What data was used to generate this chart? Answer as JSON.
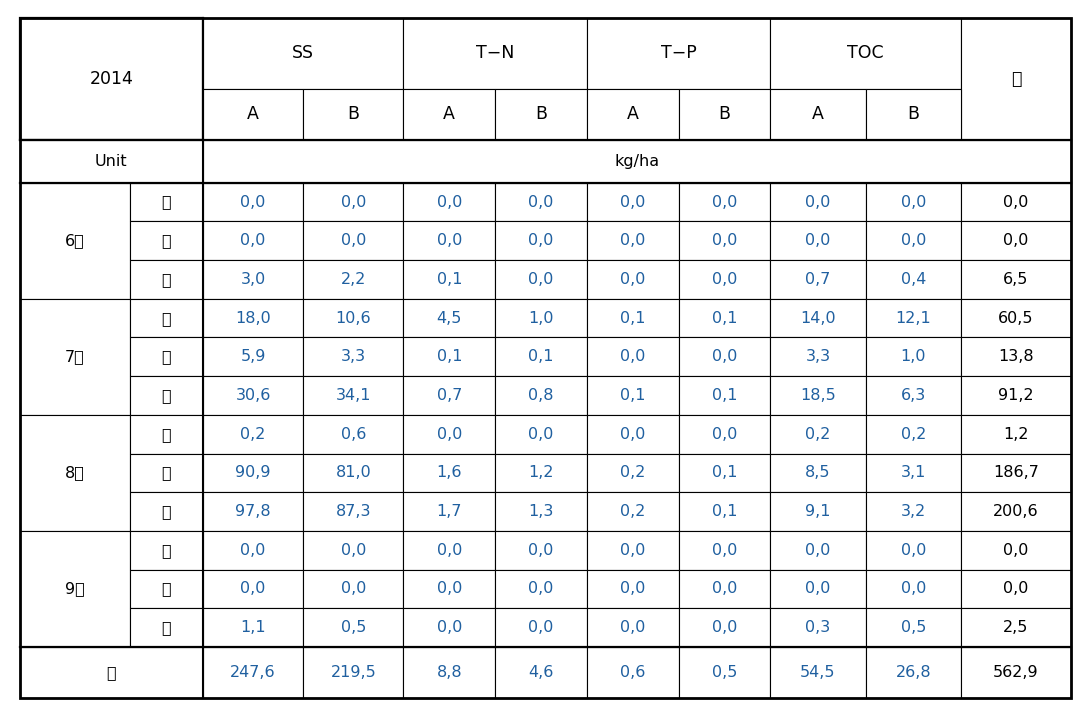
{
  "title_year": "2014",
  "unit_label": "Unit",
  "unit_value": "kg/ha",
  "last_col": "계",
  "months": [
    "6월",
    "7월",
    "8월",
    "9월"
  ],
  "sub_rows": [
    "초",
    "중",
    "말"
  ],
  "total_row_label": "계",
  "data": [
    [
      "0,0",
      "0,0",
      "0,0",
      "0,0",
      "0,0",
      "0,0",
      "0,0",
      "0,0",
      "0,0"
    ],
    [
      "0,0",
      "0,0",
      "0,0",
      "0,0",
      "0,0",
      "0,0",
      "0,0",
      "0,0",
      "0,0"
    ],
    [
      "3,0",
      "2,2",
      "0,1",
      "0,0",
      "0,0",
      "0,0",
      "0,7",
      "0,4",
      "6,5"
    ],
    [
      "18,0",
      "10,6",
      "4,5",
      "1,0",
      "0,1",
      "0,1",
      "14,0",
      "12,1",
      "60,5"
    ],
    [
      "5,9",
      "3,3",
      "0,1",
      "0,1",
      "0,0",
      "0,0",
      "3,3",
      "1,0",
      "13,8"
    ],
    [
      "30,6",
      "34,1",
      "0,7",
      "0,8",
      "0,1",
      "0,1",
      "18,5",
      "6,3",
      "91,2"
    ],
    [
      "0,2",
      "0,6",
      "0,0",
      "0,0",
      "0,0",
      "0,0",
      "0,2",
      "0,2",
      "1,2"
    ],
    [
      "90,9",
      "81,0",
      "1,6",
      "1,2",
      "0,2",
      "0,1",
      "8,5",
      "3,1",
      "186,7"
    ],
    [
      "97,8",
      "87,3",
      "1,7",
      "1,3",
      "0,2",
      "0,1",
      "9,1",
      "3,2",
      "200,6"
    ],
    [
      "0,0",
      "0,0",
      "0,0",
      "0,0",
      "0,0",
      "0,0",
      "0,0",
      "0,0",
      "0,0"
    ],
    [
      "0,0",
      "0,0",
      "0,0",
      "0,0",
      "0,0",
      "0,0",
      "0,0",
      "0,0",
      "0,0"
    ],
    [
      "1,1",
      "0,5",
      "0,0",
      "0,0",
      "0,0",
      "0,0",
      "0,3",
      "0,5",
      "2,5"
    ]
  ],
  "total_row": [
    "247,6",
    "219,5",
    "8,8",
    "4,6",
    "0,6",
    "0,5",
    "54,5",
    "26,8",
    "562,9"
  ],
  "bg_color": "#ffffff",
  "border_color": "#000000",
  "data_text_color": "#2060a0",
  "label_text_color": "#000000",
  "font_size": 11.5,
  "header_font_size": 12.5
}
